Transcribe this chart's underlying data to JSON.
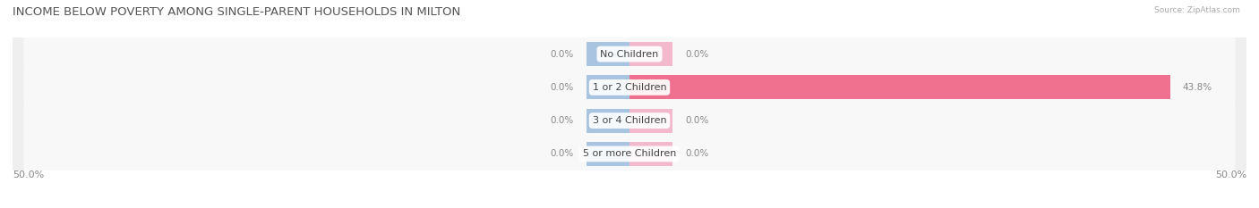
{
  "title": "INCOME BELOW POVERTY AMONG SINGLE-PARENT HOUSEHOLDS IN MILTON",
  "source": "Source: ZipAtlas.com",
  "categories": [
    "No Children",
    "1 or 2 Children",
    "3 or 4 Children",
    "5 or more Children"
  ],
  "single_father": [
    0.0,
    0.0,
    0.0,
    0.0
  ],
  "single_mother": [
    0.0,
    43.8,
    0.0,
    0.0
  ],
  "xlim_val": 50,
  "x_left_label": "50.0%",
  "x_right_label": "50.0%",
  "father_color": "#a8c4e0",
  "mother_color": "#f07090",
  "mother_color_light": "#f4b8cc",
  "row_bg_color": "#efefef",
  "row_bg_inner": "#f8f8f8",
  "title_color": "#555555",
  "value_color": "#888888",
  "cat_label_color": "#444444",
  "title_fontsize": 9.5,
  "cat_fontsize": 8,
  "val_fontsize": 7.5,
  "axis_label_fontsize": 8
}
